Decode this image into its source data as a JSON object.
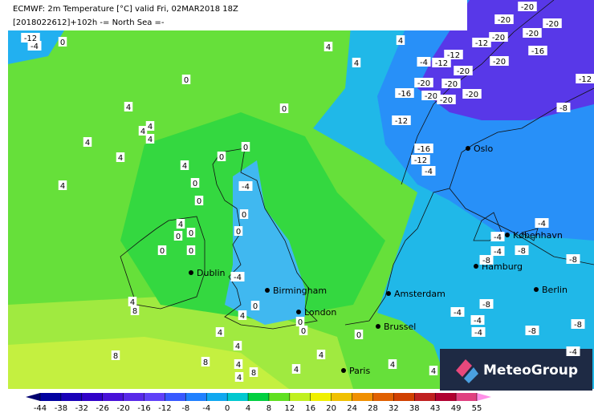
{
  "header": {
    "line1": "ECMWF: 2m Temperature [°C] valid Fri, 02MAR2018 18Z",
    "line2": "[2018022612]+102h  -= North Sea =-"
  },
  "cities": [
    "Oslo",
    "København",
    "Hamburg",
    "Berlin",
    "Dublin",
    "Birmingham",
    "London",
    "Amsterdam",
    "Brussel",
    "Paris"
  ],
  "temperature_labels": [
    -12,
    -4,
    0,
    4,
    4,
    4,
    0,
    4,
    0,
    4,
    4,
    4,
    4,
    4,
    0,
    0,
    4,
    4,
    0,
    0,
    -4,
    0,
    4,
    0,
    0,
    0,
    0,
    0,
    -4,
    4,
    8,
    0,
    4,
    0,
    0,
    4,
    4,
    8,
    8,
    4,
    4,
    8,
    4,
    4,
    0,
    4,
    4,
    -20,
    -20,
    -20,
    -12,
    -20,
    -20,
    -12,
    -12,
    -4,
    -20,
    -20,
    -16,
    -12,
    -20,
    -20,
    -16,
    -20,
    -20,
    -20,
    -8,
    -12,
    -16,
    -12,
    -4,
    -4,
    -4,
    -8,
    -8,
    -4,
    -8,
    -4,
    -8,
    -4,
    -8,
    -8,
    -4,
    -4
  ],
  "legend": {
    "ticks": [
      -44,
      -38,
      -32,
      -26,
      -20,
      -16,
      -12,
      -8,
      -4,
      0,
      4,
      8,
      12,
      16,
      20,
      24,
      28,
      32,
      38,
      43,
      49,
      55
    ],
    "colors": [
      "#000070",
      "#0000a0",
      "#1800b8",
      "#3000c8",
      "#4810d8",
      "#5828e8",
      "#6040f8",
      "#3858ff",
      "#2080ff",
      "#10a8f0",
      "#00c8d0",
      "#00d040",
      "#60e020",
      "#c0f020",
      "#f0f000",
      "#f0c000",
      "#f09000",
      "#e06000",
      "#d04000",
      "#c02020",
      "#b00030",
      "#e04080",
      "#ff60c0",
      "#ff90e8"
    ]
  },
  "logo": "MeteoGroup"
}
